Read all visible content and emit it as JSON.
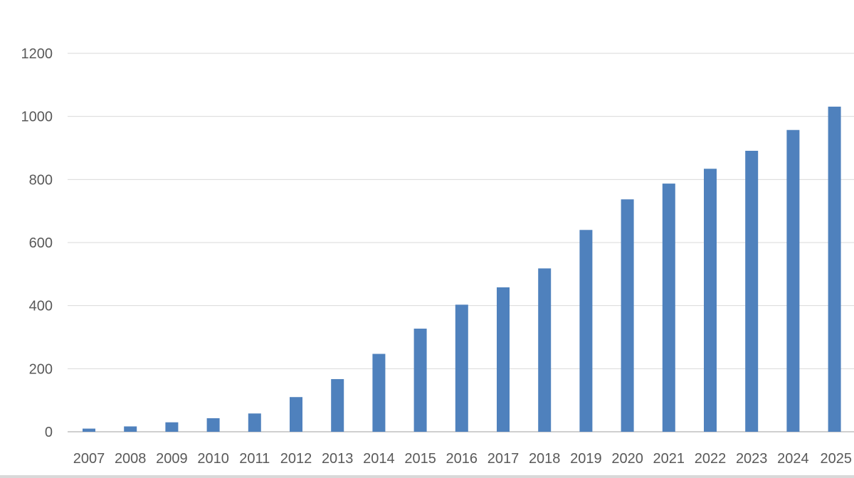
{
  "chart_data": {
    "type": "bar",
    "categories": [
      "2007",
      "2008",
      "2009",
      "2010",
      "2011",
      "2012",
      "2013",
      "2014",
      "2015",
      "2016",
      "2017",
      "2018",
      "2019",
      "2020",
      "2021",
      "2022",
      "2023",
      "2024",
      "2025"
    ],
    "values": [
      10,
      17,
      30,
      43,
      58,
      110,
      167,
      247,
      327,
      403,
      458,
      518,
      640,
      737,
      787,
      834,
      891,
      957,
      1031
    ],
    "yticks": [
      "0",
      "200",
      "400",
      "600",
      "800",
      "1000",
      "1200"
    ],
    "ylim": [
      0,
      1200
    ],
    "grid": true,
    "legend": "none",
    "title": "",
    "xlabel": "",
    "ylabel": "",
    "colors": {
      "bar": "#4f81bd",
      "grid": "#d9d9d9",
      "axis": "#bfbfbf",
      "text": "#595959"
    }
  }
}
